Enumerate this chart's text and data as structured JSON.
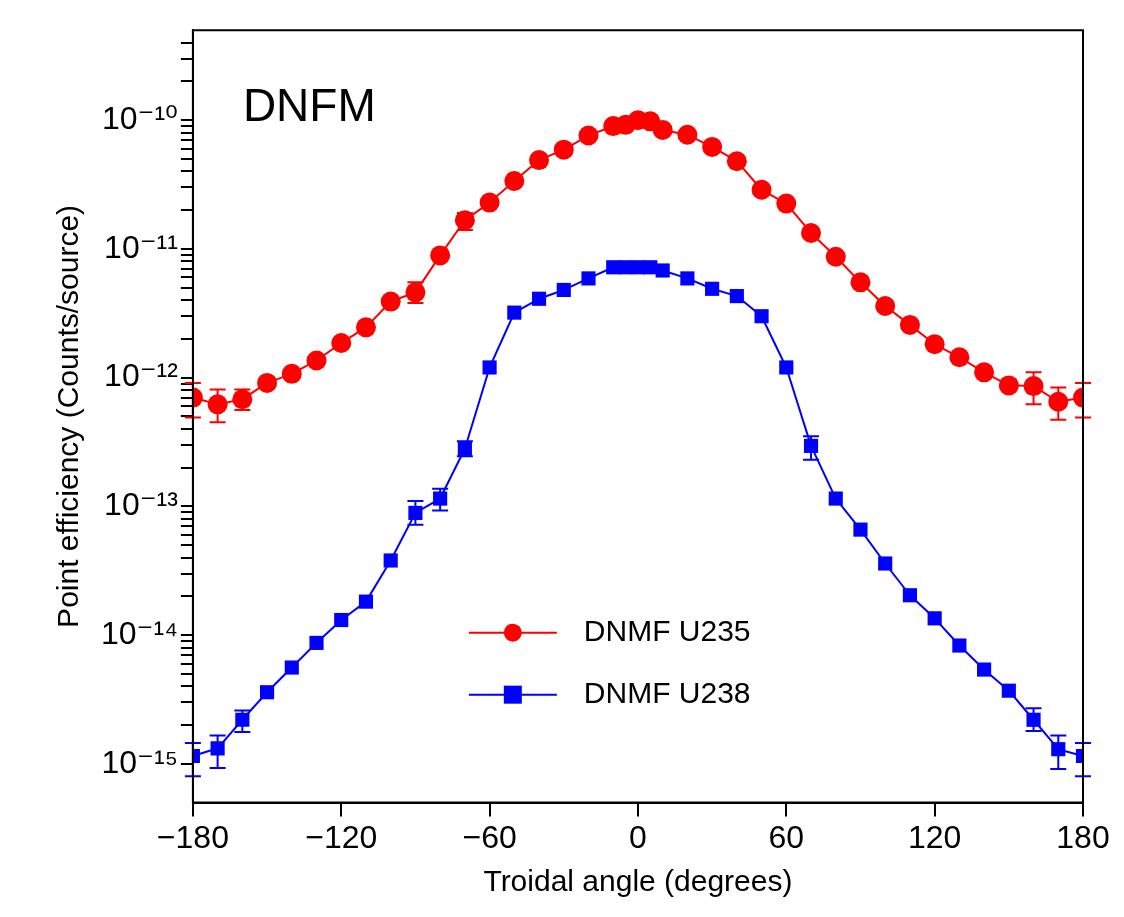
{
  "chart_data": {
    "type": "line",
    "title": "DNFM",
    "xlabel": "Troidal angle (degrees)",
    "ylabel": "Point efficiency (Counts/source)",
    "x": [
      -180,
      -170,
      -160,
      -150,
      -140,
      -130,
      -120,
      -110,
      -100,
      -90,
      -80,
      -70,
      -60,
      -50,
      -40,
      -30,
      -20,
      -10,
      -5,
      0,
      5,
      10,
      20,
      30,
      40,
      50,
      60,
      70,
      80,
      90,
      100,
      110,
      120,
      130,
      140,
      150,
      160,
      170,
      180
    ],
    "series": [
      {
        "name": "DNMF U235",
        "color": "#ff0000",
        "marker": "circle",
        "values": [
          7e-13,
          6.2e-13,
          6.8e-13,
          9.1e-13,
          1.07e-12,
          1.36e-12,
          1.86e-12,
          2.46e-12,
          3.9e-12,
          4.6e-12,
          8.9e-12,
          1.67e-11,
          2.29e-11,
          3.37e-11,
          4.9e-11,
          5.9e-11,
          7.6e-11,
          9e-11,
          9.2e-11,
          1e-10,
          9.8e-11,
          8.4e-11,
          7.7e-11,
          6.2e-11,
          4.8e-11,
          2.88e-11,
          2.25e-11,
          1.33e-11,
          8.7e-12,
          5.5e-12,
          3.6e-12,
          2.57e-12,
          1.82e-12,
          1.44e-12,
          1.1e-12,
          8.7e-13,
          8.6e-13,
          6.5e-13,
          7e-13
        ],
        "errors": [
          [
            4.9e-13,
            9.1e-13
          ],
          [
            4.5e-13,
            8.1e-13
          ],
          [
            5.6e-13,
            8.1e-13
          ],
          null,
          null,
          null,
          null,
          null,
          null,
          [
            3.8e-12,
            5.5e-12
          ],
          null,
          [
            1.4e-11,
            1.9e-11
          ],
          null,
          null,
          null,
          null,
          null,
          null,
          null,
          null,
          null,
          null,
          null,
          null,
          null,
          null,
          null,
          null,
          null,
          null,
          null,
          null,
          null,
          null,
          null,
          null,
          [
            6.2e-13,
            1.1e-12
          ],
          [
            4.7e-13,
            8.4e-13
          ],
          [
            4.9e-13,
            9.1e-13
          ]
        ]
      },
      {
        "name": "DNMF U238",
        "color": "#0000ff",
        "marker": "square",
        "values": [
          1.15e-15,
          1.32e-15,
          2.2e-15,
          3.6e-15,
          5.6e-15,
          8.7e-15,
          1.31e-14,
          1.82e-14,
          3.8e-14,
          8.9e-14,
          1.15e-13,
          2.8e-13,
          1.2e-12,
          3.2e-12,
          4.1e-12,
          4.8e-12,
          5.9e-12,
          7.2e-12,
          7.2e-12,
          7.2e-12,
          7.2e-12,
          6.8e-12,
          5.9e-12,
          4.9e-12,
          4.3e-12,
          3e-12,
          1.2e-12,
          2.95e-13,
          1.15e-13,
          6.6e-14,
          3.6e-14,
          2.04e-14,
          1.35e-14,
          8.3e-15,
          5.4e-15,
          3.7e-15,
          2.2e-15,
          1.3e-15,
          1.15e-15
        ],
        "errors": [
          [
            8e-16,
            1.45e-15
          ],
          [
            9.3e-16,
            1.66e-15
          ],
          [
            1.77e-15,
            2.6e-15
          ],
          null,
          null,
          null,
          null,
          null,
          null,
          [
            7.2e-14,
            1.1e-13
          ],
          [
            9.3e-14,
            1.37e-13
          ],
          [
            2.45e-13,
            3.2e-13
          ],
          null,
          null,
          null,
          null,
          null,
          null,
          null,
          null,
          null,
          null,
          null,
          null,
          null,
          null,
          null,
          [
            2.3e-13,
            3.5e-13
          ],
          null,
          null,
          null,
          null,
          null,
          null,
          null,
          null,
          [
            1.8e-15,
            2.7e-15
          ],
          [
            9.1e-16,
            1.66e-15
          ],
          [
            8e-16,
            1.45e-15
          ]
        ]
      }
    ],
    "log": "y",
    "xlim": [
      -180,
      180
    ],
    "xticks": [
      {
        "value": -180,
        "label": "−180"
      },
      {
        "value": -120,
        "label": "−120"
      },
      {
        "value": -60,
        "label": "−60"
      },
      0,
      60,
      120,
      180
    ],
    "ylim": [
      5e-16,
      5e-10
    ],
    "yticks": [
      {
        "value": 1e-15,
        "label": "10⁻¹⁵"
      },
      {
        "value": 2e-15,
        "label": null
      },
      {
        "value": 3e-15,
        "label": null
      },
      {
        "value": 4e-15,
        "label": null
      },
      {
        "value": 5e-15,
        "label": null
      },
      {
        "value": 6e-15,
        "label": null
      },
      {
        "value": 7e-15,
        "label": null
      },
      {
        "value": 8e-15,
        "label": null
      },
      {
        "value": 9e-15,
        "label": null
      },
      {
        "value": 1e-14,
        "label": "10⁻¹⁴"
      },
      {
        "value": 2e-14,
        "label": null
      },
      {
        "value": 3e-14,
        "label": null
      },
      {
        "value": 4e-14,
        "label": null
      },
      {
        "value": 5e-14,
        "label": null
      },
      {
        "value": 6e-14,
        "label": null
      },
      {
        "value": 7e-14,
        "label": null
      },
      {
        "value": 8e-14,
        "label": null
      },
      {
        "value": 9e-14,
        "label": null
      },
      {
        "value": 1e-13,
        "label": "10⁻¹³"
      },
      {
        "value": 2e-13,
        "label": null
      },
      {
        "value": 3e-13,
        "label": null
      },
      {
        "value": 4e-13,
        "label": null
      },
      {
        "value": 5e-13,
        "label": null
      },
      {
        "value": 6e-13,
        "label": null
      },
      {
        "value": 7e-13,
        "label": null
      },
      {
        "value": 8e-13,
        "label": null
      },
      {
        "value": 9e-13,
        "label": null
      },
      {
        "value": 1e-12,
        "label": "10⁻¹²"
      },
      {
        "value": 2e-12,
        "label": null
      },
      {
        "value": 3e-12,
        "label": null
      },
      {
        "value": 4e-12,
        "label": null
      },
      {
        "value": 5e-12,
        "label": null
      },
      {
        "value": 6e-12,
        "label": null
      },
      {
        "value": 7e-12,
        "label": null
      },
      {
        "value": 8e-12,
        "label": null
      },
      {
        "value": 9e-12,
        "label": null
      },
      {
        "value": 1e-11,
        "label": "10⁻¹¹"
      },
      {
        "value": 2e-11,
        "label": null
      },
      {
        "value": 3e-11,
        "label": null
      },
      {
        "value": 4e-11,
        "label": null
      },
      {
        "value": 5e-11,
        "label": null
      },
      {
        "value": 6e-11,
        "label": null
      },
      {
        "value": 7e-11,
        "label": null
      },
      {
        "value": 8e-11,
        "label": null
      },
      {
        "value": 9e-11,
        "label": null
      },
      {
        "value": 1e-10,
        "label": "10⁻¹⁰"
      },
      {
        "value": 2e-10,
        "label": null
      },
      {
        "value": 3e-10,
        "label": null
      },
      {
        "value": 4e-10,
        "label": null
      }
    ],
    "grid": false,
    "legend": "bottom",
    "line_style": "solid"
  }
}
